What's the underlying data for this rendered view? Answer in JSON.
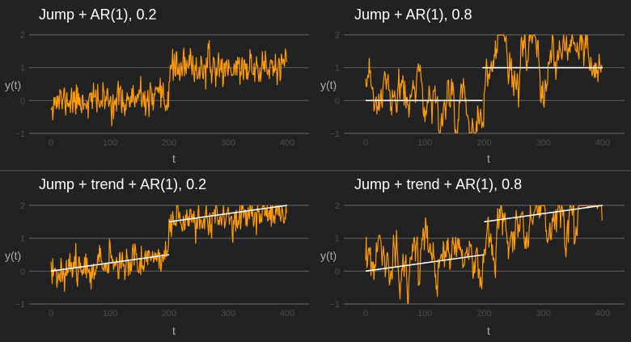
{
  "colors": {
    "background": "#222222",
    "grid": "#5a5a5a",
    "series": "#ff9a00",
    "model": "#ffffff",
    "title": "#ffffff",
    "axis_label": "#aaaaaa",
    "tick_label": "#4d4d4d",
    "divider": "#5a5a5a"
  },
  "chart_data": [
    {
      "type": "line",
      "title": "Jump + AR(1), 0.2",
      "xlabel": "t",
      "ylabel": "y(t)",
      "xlim": [
        0,
        400
      ],
      "ylim": [
        -1,
        2
      ],
      "xticks": [
        0,
        100,
        200,
        300,
        400
      ],
      "yticks": [
        -1,
        0,
        1,
        2
      ],
      "grid": true,
      "legend": "none",
      "model": {
        "segments": []
      },
      "series": [
        {
          "kind": "ar1",
          "phi": 0.2,
          "noise_sd": 0.25,
          "seed": 11,
          "n": 400,
          "mean_segments": [
            {
              "t0": 0,
              "t1": 200,
              "m0": 0,
              "m1": 0
            },
            {
              "t0": 200,
              "t1": 400,
              "m0": 1,
              "m1": 1
            }
          ]
        }
      ]
    },
    {
      "type": "line",
      "title": "Jump + AR(1), 0.8",
      "xlabel": "t",
      "ylabel": "y(t)",
      "xlim": [
        0,
        400
      ],
      "ylim": [
        -1,
        2
      ],
      "xticks": [
        0,
        100,
        200,
        300,
        400
      ],
      "yticks": [
        -1,
        0,
        1,
        2
      ],
      "grid": true,
      "legend": "none",
      "model": {
        "segments": [
          {
            "t0": 0,
            "t1": 197,
            "y0": 0,
            "y1": 0
          },
          {
            "t0": 197,
            "t1": 400,
            "y0": 1,
            "y1": 1
          }
        ]
      },
      "series": [
        {
          "kind": "ar1",
          "phi": 0.8,
          "noise_sd": 0.33,
          "seed": 23,
          "n": 400,
          "mean_segments": [
            {
              "t0": 0,
              "t1": 200,
              "m0": 0,
              "m1": 0
            },
            {
              "t0": 200,
              "t1": 400,
              "m0": 1,
              "m1": 1
            }
          ]
        }
      ]
    },
    {
      "type": "line",
      "title": "Jump + trend + AR(1), 0.2",
      "xlabel": "t",
      "ylabel": "y(t)",
      "xlim": [
        0,
        400
      ],
      "ylim": [
        -1,
        2
      ],
      "xticks": [
        0,
        100,
        200,
        300,
        400
      ],
      "yticks": [
        -1,
        0,
        1,
        2
      ],
      "grid": true,
      "legend": "none",
      "model": {
        "segments": [
          {
            "t0": 0,
            "t1": 200,
            "y0": 0,
            "y1": 0.5
          },
          {
            "t0": 200,
            "t1": 400,
            "y0": 1.5,
            "y1": 2
          }
        ]
      },
      "series": [
        {
          "kind": "ar1",
          "phi": 0.2,
          "noise_sd": 0.25,
          "seed": 37,
          "n": 400,
          "mean_segments": [
            {
              "t0": 0,
              "t1": 200,
              "m0": 0,
              "m1": 0.5
            },
            {
              "t0": 200,
              "t1": 400,
              "m0": 1.5,
              "m1": 1.8
            }
          ]
        }
      ]
    },
    {
      "type": "line",
      "title": "Jump + trend + AR(1), 0.8",
      "xlabel": "t",
      "ylabel": "y(t)",
      "xlim": [
        0,
        400
      ],
      "ylim": [
        -1,
        2
      ],
      "xticks": [
        0,
        100,
        200,
        300,
        400
      ],
      "yticks": [
        -1,
        0,
        1,
        2
      ],
      "grid": true,
      "legend": "none",
      "model": {
        "segments": [
          {
            "t0": 0,
            "t1": 200,
            "y0": 0,
            "y1": 0.5
          },
          {
            "t0": 200,
            "t1": 400,
            "y0": 1.5,
            "y1": 2
          }
        ]
      },
      "series": [
        {
          "kind": "ar1",
          "phi": 0.8,
          "noise_sd": 0.33,
          "seed": 53,
          "n": 400,
          "mean_segments": [
            {
              "t0": 0,
              "t1": 200,
              "m0": 0,
              "m1": 0.5
            },
            {
              "t0": 200,
              "t1": 400,
              "m0": 1.5,
              "m1": 1.8
            }
          ]
        }
      ]
    }
  ]
}
